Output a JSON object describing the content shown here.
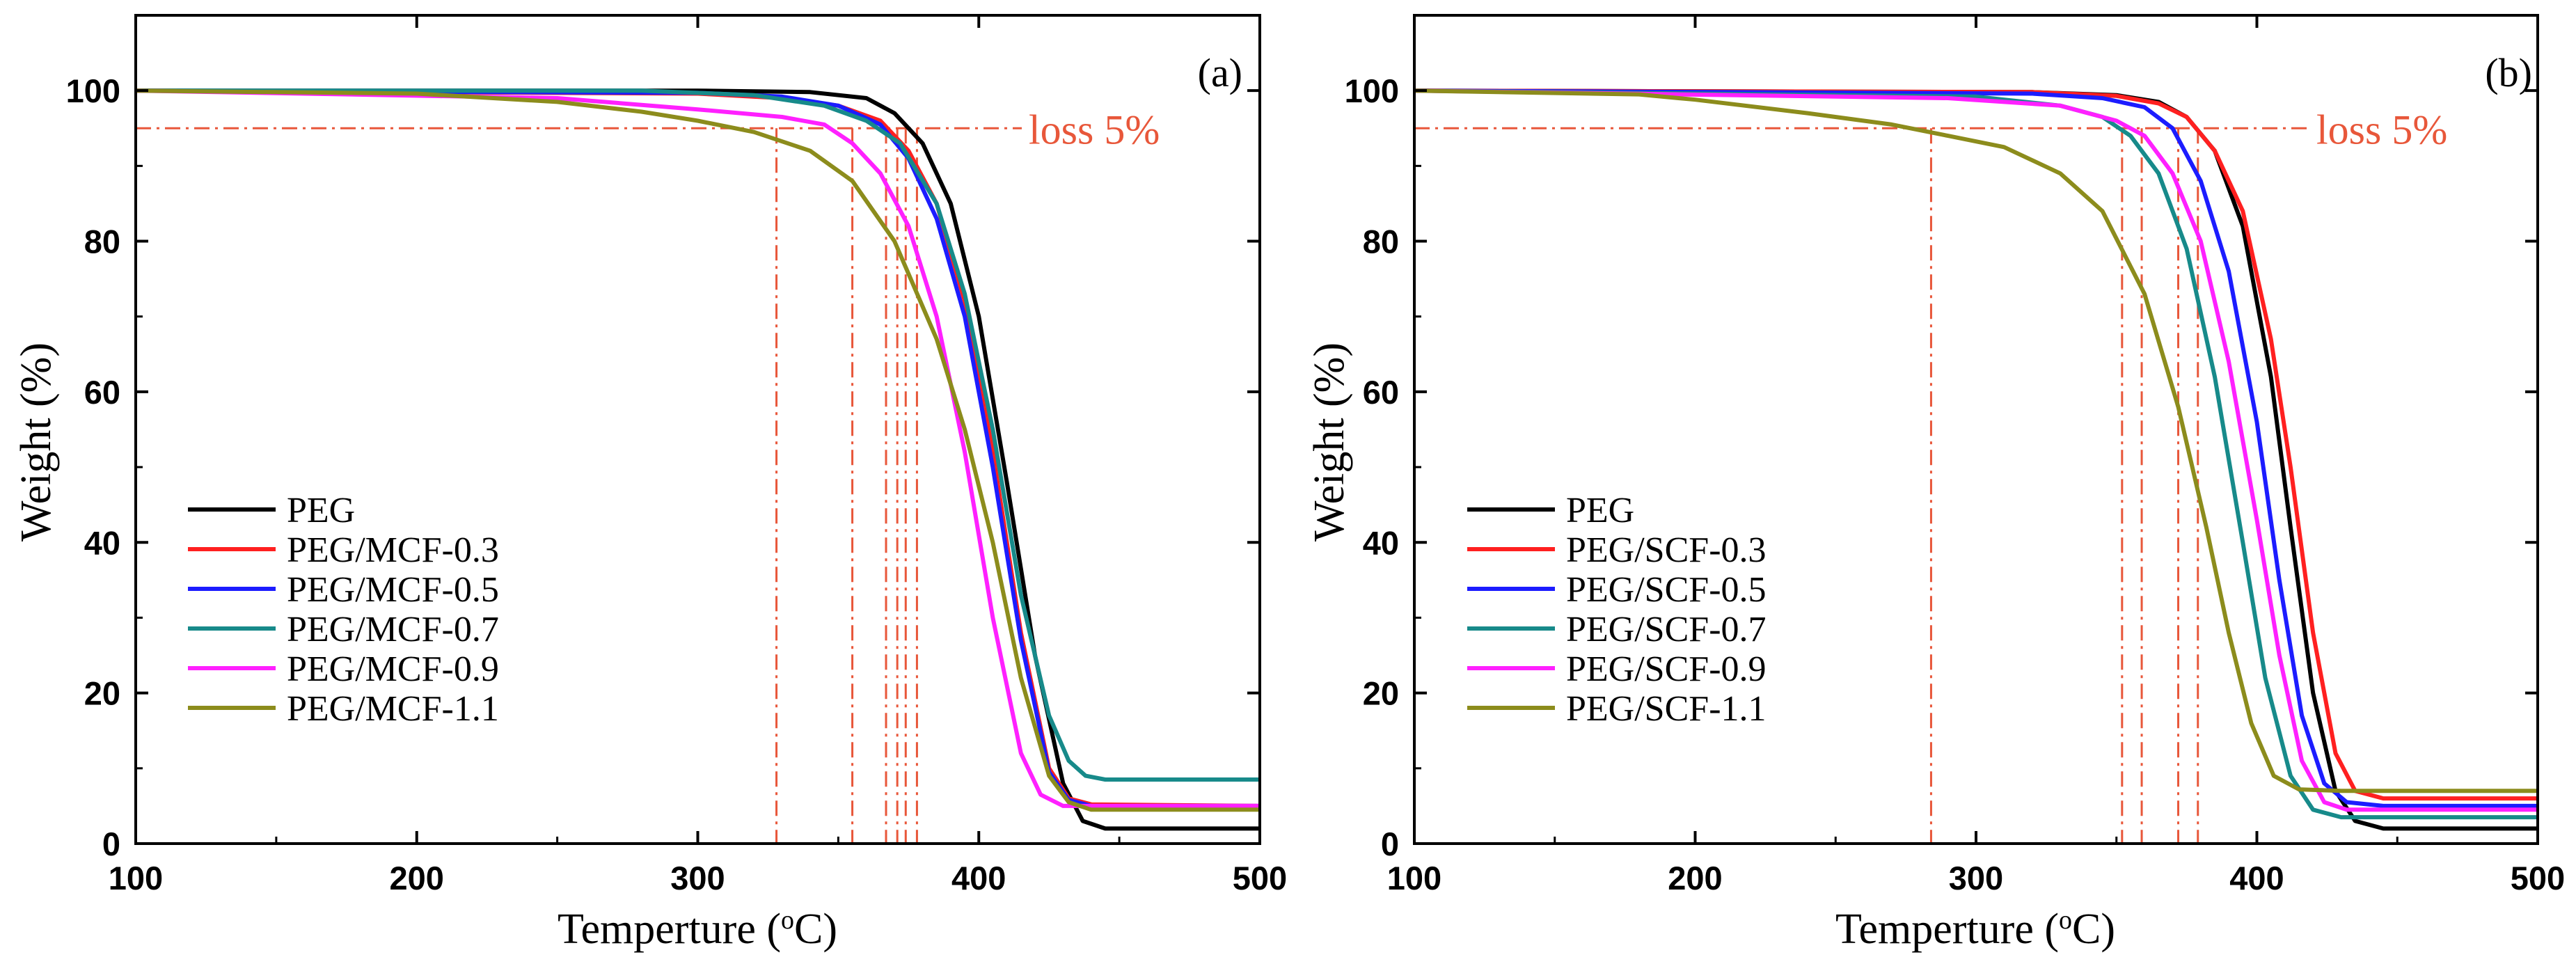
{
  "chart_data": [
    {
      "type": "line",
      "panel_label": "(a)",
      "xlabel_main": "Temperture (",
      "xlabel_sup": "o",
      "xlabel_end": "C)",
      "ylabel": "Weight (%)",
      "xlim": [
        100,
        500
      ],
      "ylim": [
        0,
        110
      ],
      "xticks": [
        100,
        200,
        300,
        400,
        500
      ],
      "yticks": [
        0,
        20,
        40,
        60,
        80,
        100
      ],
      "legend_position": "lower-left",
      "annotation": {
        "text": "loss 5%",
        "y": 95,
        "color": "#e8573a"
      },
      "onset_temperatures": [
        328,
        355,
        367,
        371,
        374,
        378
      ],
      "series": [
        {
          "name": "PEG",
          "color": "#000000",
          "points": [
            [
              100,
              100
            ],
            [
              300,
              100
            ],
            [
              340,
              99.8
            ],
            [
              360,
              99
            ],
            [
              370,
              97
            ],
            [
              380,
              93
            ],
            [
              390,
              85
            ],
            [
              400,
              70
            ],
            [
              410,
              48
            ],
            [
              420,
              25
            ],
            [
              430,
              8
            ],
            [
              437,
              3
            ],
            [
              445,
              2
            ],
            [
              500,
              2
            ]
          ]
        },
        {
          "name": "PEG/MCF-0.3",
          "color": "#ff2020",
          "points": [
            [
              100,
              100
            ],
            [
              300,
              99.6
            ],
            [
              330,
              99
            ],
            [
              350,
              98
            ],
            [
              365,
              96
            ],
            [
              375,
              92
            ],
            [
              385,
              85
            ],
            [
              395,
              72
            ],
            [
              405,
              52
            ],
            [
              415,
              28
            ],
            [
              425,
              10
            ],
            [
              432,
              6
            ],
            [
              440,
              5.2
            ],
            [
              500,
              5
            ]
          ]
        },
        {
          "name": "PEG/MCF-0.5",
          "color": "#1c1cff",
          "points": [
            [
              100,
              100
            ],
            [
              300,
              99.7
            ],
            [
              330,
              99.2
            ],
            [
              350,
              98
            ],
            [
              365,
              95.5
            ],
            [
              375,
              91
            ],
            [
              385,
              83
            ],
            [
              395,
              70
            ],
            [
              405,
              50
            ],
            [
              415,
              27
            ],
            [
              425,
              9.5
            ],
            [
              432,
              5.8
            ],
            [
              440,
              5
            ],
            [
              500,
              5
            ]
          ]
        },
        {
          "name": "PEG/MCF-0.7",
          "color": "#178a8a",
          "points": [
            [
              100,
              100
            ],
            [
              280,
              100
            ],
            [
              320,
              99.4
            ],
            [
              345,
              98
            ],
            [
              360,
              96
            ],
            [
              372,
              93
            ],
            [
              385,
              85
            ],
            [
              395,
              73
            ],
            [
              405,
              55
            ],
            [
              415,
              33
            ],
            [
              425,
              17
            ],
            [
              432,
              11
            ],
            [
              438,
              9
            ],
            [
              445,
              8.5
            ],
            [
              500,
              8.5
            ]
          ]
        },
        {
          "name": "PEG/MCF-0.9",
          "color": "#ff20ff",
          "points": [
            [
              100,
              100
            ],
            [
              250,
              99
            ],
            [
              300,
              97.5
            ],
            [
              330,
              96.5
            ],
            [
              345,
              95.5
            ],
            [
              355,
              93
            ],
            [
              365,
              89
            ],
            [
              375,
              82
            ],
            [
              385,
              70
            ],
            [
              395,
              52
            ],
            [
              405,
              30
            ],
            [
              415,
              12
            ],
            [
              422,
              6.5
            ],
            [
              430,
              5
            ],
            [
              500,
              5
            ]
          ]
        },
        {
          "name": "PEG/MCF-1.1",
          "color": "#8c8c1c",
          "points": [
            [
              100,
              100
            ],
            [
              200,
              99.6
            ],
            [
              250,
              98.5
            ],
            [
              280,
              97.2
            ],
            [
              300,
              96
            ],
            [
              320,
              94.5
            ],
            [
              340,
              92
            ],
            [
              355,
              88
            ],
            [
              370,
              80
            ],
            [
              385,
              67
            ],
            [
              395,
              55
            ],
            [
              405,
              40
            ],
            [
              415,
              22
            ],
            [
              425,
              9
            ],
            [
              432,
              5.5
            ],
            [
              440,
              4.5
            ],
            [
              500,
              4.5
            ]
          ]
        }
      ]
    },
    {
      "type": "line",
      "panel_label": "(b)",
      "xlabel_main": "Temperture (",
      "xlabel_sup": "o",
      "xlabel_end": "C)",
      "ylabel": "Weight (%)",
      "xlim": [
        100,
        500
      ],
      "ylim": [
        0,
        110
      ],
      "xticks": [
        100,
        200,
        300,
        400,
        500
      ],
      "yticks": [
        0,
        20,
        40,
        60,
        80,
        100
      ],
      "legend_position": "lower-left",
      "annotation": {
        "text": "loss 5%",
        "y": 95,
        "color": "#e8573a"
      },
      "onset_temperatures": [
        284,
        352,
        359,
        372,
        379
      ],
      "series": [
        {
          "name": "PEG",
          "color": "#000000",
          "points": [
            [
              100,
              100
            ],
            [
              320,
              99.8
            ],
            [
              350,
              99.4
            ],
            [
              365,
              98.5
            ],
            [
              375,
              96.5
            ],
            [
              385,
              92
            ],
            [
              395,
              82
            ],
            [
              405,
              62
            ],
            [
              412,
              42
            ],
            [
              420,
              20
            ],
            [
              428,
              7
            ],
            [
              435,
              3
            ],
            [
              445,
              2
            ],
            [
              500,
              2
            ]
          ]
        },
        {
          "name": "PEG/SCF-0.3",
          "color": "#ff2020",
          "points": [
            [
              100,
              100
            ],
            [
              320,
              99.8
            ],
            [
              350,
              99.3
            ],
            [
              365,
              98.3
            ],
            [
              375,
              96.5
            ],
            [
              385,
              92
            ],
            [
              395,
              84
            ],
            [
              405,
              67
            ],
            [
              412,
              50
            ],
            [
              420,
              28
            ],
            [
              428,
              12
            ],
            [
              435,
              7
            ],
            [
              445,
              6
            ],
            [
              500,
              6
            ]
          ]
        },
        {
          "name": "PEG/SCF-0.5",
          "color": "#1c1cff",
          "points": [
            [
              100,
              100
            ],
            [
              320,
              99.6
            ],
            [
              345,
              99
            ],
            [
              360,
              97.8
            ],
            [
              370,
              95
            ],
            [
              380,
              88
            ],
            [
              390,
              76
            ],
            [
              400,
              56
            ],
            [
              408,
              35
            ],
            [
              416,
              17
            ],
            [
              424,
              8
            ],
            [
              432,
              5.5
            ],
            [
              445,
              5
            ],
            [
              500,
              5
            ]
          ]
        },
        {
          "name": "PEG/SCF-0.7",
          "color": "#178a8a",
          "points": [
            [
              100,
              100
            ],
            [
              300,
              99.2
            ],
            [
              330,
              98
            ],
            [
              345,
              96.5
            ],
            [
              355,
              94
            ],
            [
              365,
              89
            ],
            [
              375,
              79
            ],
            [
              385,
              62
            ],
            [
              395,
              40
            ],
            [
              403,
              22
            ],
            [
              412,
              9
            ],
            [
              420,
              4.5
            ],
            [
              430,
              3.5
            ],
            [
              500,
              3.5
            ]
          ]
        },
        {
          "name": "PEG/SCF-0.9",
          "color": "#ff20ff",
          "points": [
            [
              100,
              100
            ],
            [
              290,
              99
            ],
            [
              330,
              98
            ],
            [
              350,
              96
            ],
            [
              360,
              94
            ],
            [
              370,
              89
            ],
            [
              380,
              80
            ],
            [
              390,
              64
            ],
            [
              400,
              43
            ],
            [
              408,
              25
            ],
            [
              416,
              11
            ],
            [
              424,
              5.5
            ],
            [
              432,
              4.5
            ],
            [
              500,
              4.5
            ]
          ]
        },
        {
          "name": "PEG/SCF-1.1",
          "color": "#8c8c1c",
          "points": [
            [
              100,
              100
            ],
            [
              180,
              99.5
            ],
            [
              200,
              98.8
            ],
            [
              240,
              97
            ],
            [
              270,
              95.5
            ],
            [
              290,
              94
            ],
            [
              310,
              92.5
            ],
            [
              330,
              89
            ],
            [
              345,
              84
            ],
            [
              360,
              73
            ],
            [
              372,
              58
            ],
            [
              382,
              42
            ],
            [
              390,
              28
            ],
            [
              398,
              16
            ],
            [
              406,
              9
            ],
            [
              415,
              7.2
            ],
            [
              430,
              7
            ],
            [
              500,
              7
            ]
          ]
        }
      ]
    }
  ]
}
